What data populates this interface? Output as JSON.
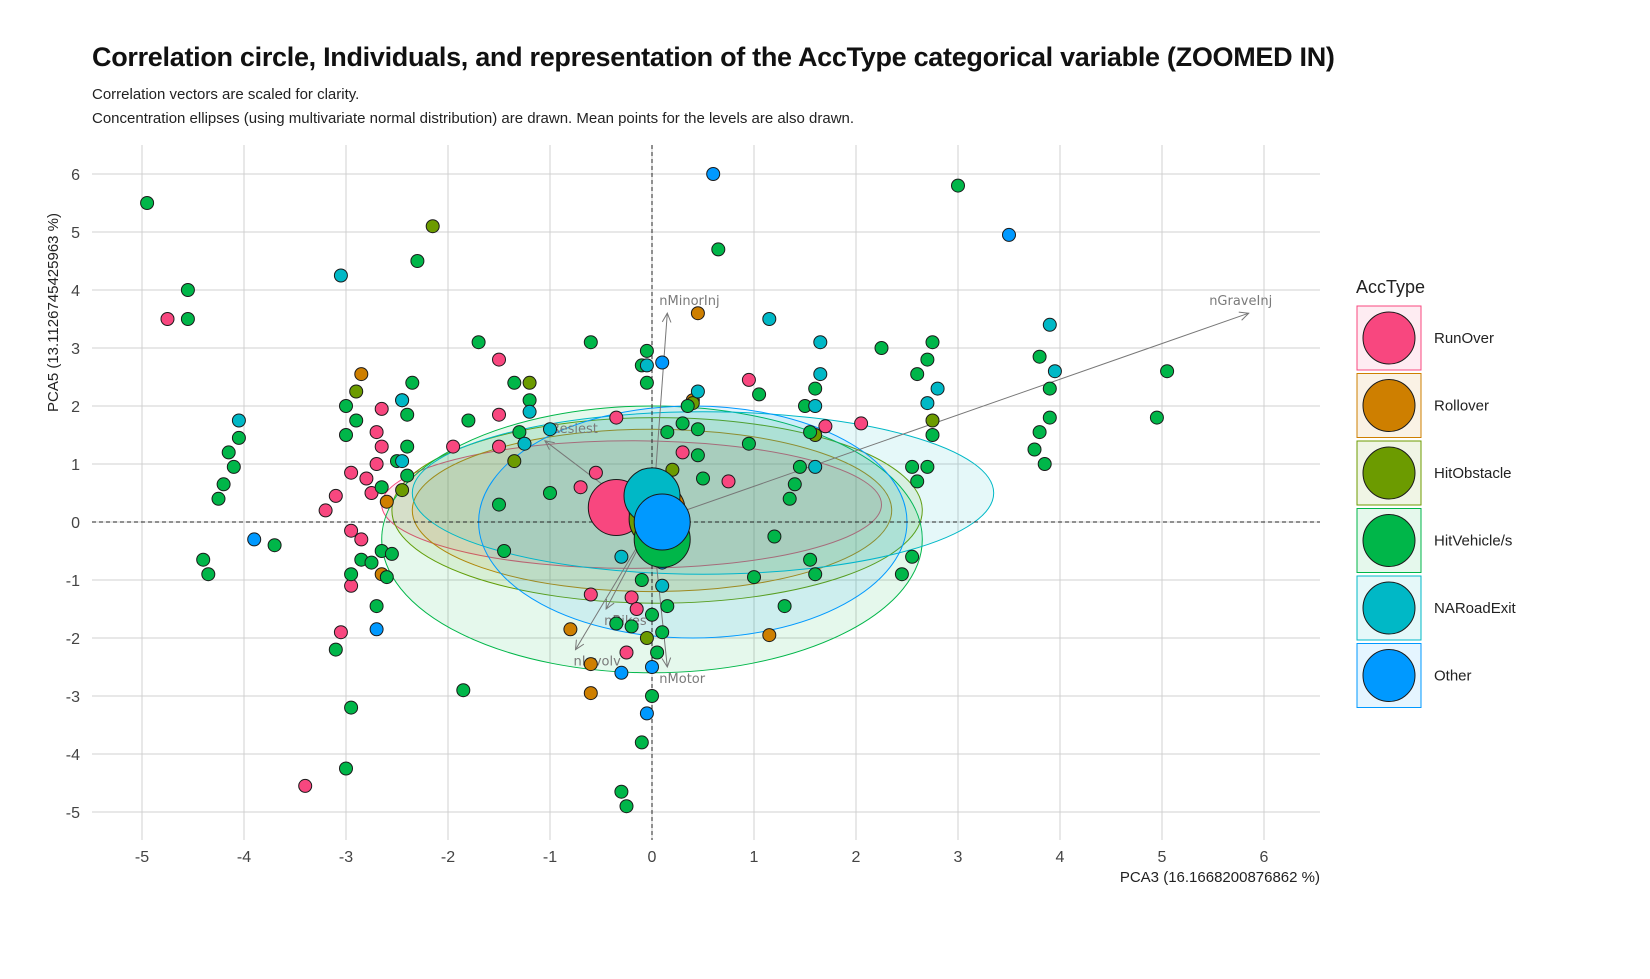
{
  "chart_data": {
    "type": "scatter",
    "title": "Correlation circle, Individuals, and representation of the AccType categorical variable (ZOOMED IN)",
    "subtitle_lines": [
      "Correlation vectors are scaled for clarity.",
      "Concentration ellipses (using multivariate normal distribution) are drawn. Mean points for the levels are also drawn."
    ],
    "xlabel": "PCA3 (16.1668200876862 %)",
    "ylabel": "PCA5 (13.1126745425963 %)",
    "xlim": [
      -5.5,
      6.6
    ],
    "ylim": [
      -5.5,
      6.6
    ],
    "x_ticks": [
      -5,
      -4,
      -3,
      -2,
      -1,
      0,
      1,
      2,
      3,
      4,
      5,
      6
    ],
    "y_ticks": [
      -5,
      -4,
      -3,
      -2,
      -1,
      0,
      1,
      2,
      3,
      4,
      5,
      6
    ],
    "grid": true,
    "legend": {
      "title": "AccType",
      "position": "right",
      "levels": [
        {
          "name": "RunOver",
          "color": "#F8477F"
        },
        {
          "name": "Rollover",
          "color": "#CE7F00"
        },
        {
          "name": "HitObstacle",
          "color": "#6C9B00"
        },
        {
          "name": "HitVehicle/s",
          "color": "#00B649"
        },
        {
          "name": "NARoadExit",
          "color": "#00B8C6"
        },
        {
          "name": "Other",
          "color": "#0099FF"
        }
      ]
    },
    "vectors": [
      {
        "name": "nMinorInj",
        "x": 0.15,
        "y": 3.6
      },
      {
        "name": "nGraveInj",
        "x": 5.85,
        "y": 3.6
      },
      {
        "name": "nResiest",
        "x": -1.05,
        "y": 1.4
      },
      {
        "name": "nBikes",
        "x": -0.45,
        "y": -1.5
      },
      {
        "name": "nInvolv",
        "x": -0.75,
        "y": -2.2
      },
      {
        "name": "nMotor",
        "x": 0.15,
        "y": -2.5
      }
    ],
    "ellipses": [
      {
        "group": "RunOver",
        "cx": -0.2,
        "cy": 0.3,
        "rx": 2.45,
        "ry": 1.1
      },
      {
        "group": "Rollover",
        "cx": 0.0,
        "cy": 0.2,
        "rx": 2.35,
        "ry": 1.4
      },
      {
        "group": "HitObstacle",
        "cx": 0.05,
        "cy": 0.2,
        "rx": 2.6,
        "ry": 1.6
      },
      {
        "group": "HitVehicle/s",
        "cx": 0.0,
        "cy": -0.3,
        "rx": 2.65,
        "ry": 2.3
      },
      {
        "group": "NARoadExit",
        "cx": 0.5,
        "cy": 0.5,
        "rx": 2.85,
        "ry": 1.4
      },
      {
        "group": "Other",
        "cx": 0.4,
        "cy": 0.0,
        "rx": 2.1,
        "ry": 2.0
      }
    ],
    "means": [
      {
        "group": "RunOver",
        "x": -0.35,
        "y": 0.25
      },
      {
        "group": "Rollover",
        "x": 0.05,
        "y": 0.2
      },
      {
        "group": "HitObstacle",
        "x": 0.05,
        "y": 0.05
      },
      {
        "group": "HitVehicle/s",
        "x": 0.1,
        "y": -0.3
      },
      {
        "group": "NARoadExit",
        "x": 0.0,
        "y": 0.45
      },
      {
        "group": "Other",
        "x": 0.1,
        "y": 0.0
      }
    ],
    "series": [
      {
        "name": "RunOver",
        "points": [
          [
            -4.75,
            3.5
          ],
          [
            -3.4,
            -4.55
          ],
          [
            -3.2,
            0.2
          ],
          [
            -3.1,
            0.45
          ],
          [
            -3.05,
            -1.9
          ],
          [
            -2.95,
            -0.15
          ],
          [
            -2.95,
            -1.1
          ],
          [
            -2.95,
            0.85
          ],
          [
            -2.85,
            -0.3
          ],
          [
            -2.8,
            0.75
          ],
          [
            -2.75,
            0.5
          ],
          [
            -2.7,
            1.0
          ],
          [
            -2.7,
            1.55
          ],
          [
            -2.65,
            1.3
          ],
          [
            -2.65,
            1.95
          ],
          [
            -1.95,
            1.3
          ],
          [
            -1.5,
            1.85
          ],
          [
            -1.5,
            1.3
          ],
          [
            -1.5,
            2.8
          ],
          [
            -0.6,
            -1.25
          ],
          [
            -0.35,
            1.8
          ],
          [
            -0.25,
            -2.25
          ],
          [
            -0.2,
            -1.3
          ],
          [
            -0.15,
            -1.5
          ],
          [
            0.95,
            2.45
          ],
          [
            2.05,
            1.7
          ],
          [
            1.7,
            1.65
          ],
          [
            0.3,
            1.2
          ],
          [
            -0.55,
            0.85
          ],
          [
            -0.7,
            0.6
          ],
          [
            0.75,
            0.7
          ]
        ]
      },
      {
        "name": "Rollover",
        "points": [
          [
            -2.85,
            2.55
          ],
          [
            -2.65,
            -0.9
          ],
          [
            -2.6,
            0.35
          ],
          [
            -0.8,
            -1.85
          ],
          [
            -0.6,
            -2.45
          ],
          [
            -0.6,
            -2.95
          ],
          [
            0.45,
            3.6
          ],
          [
            1.15,
            -1.95
          ],
          [
            0.4,
            2.1
          ]
        ]
      },
      {
        "name": "HitObstacle",
        "points": [
          [
            -2.15,
            5.1
          ],
          [
            -2.9,
            2.25
          ],
          [
            -2.45,
            0.55
          ],
          [
            -1.2,
            2.4
          ],
          [
            -1.35,
            1.05
          ],
          [
            0.4,
            2.05
          ],
          [
            1.6,
            1.5
          ],
          [
            2.75,
            1.75
          ],
          [
            0.2,
            0.9
          ],
          [
            -0.05,
            -2.0
          ]
        ]
      },
      {
        "name": "HitVehicle/s",
        "points": [
          [
            -4.95,
            5.5
          ],
          [
            -4.55,
            4.0
          ],
          [
            -4.55,
            3.5
          ],
          [
            -4.4,
            -0.65
          ],
          [
            -4.35,
            -0.9
          ],
          [
            -4.25,
            0.4
          ],
          [
            -4.2,
            0.65
          ],
          [
            -4.15,
            1.2
          ],
          [
            -4.1,
            0.95
          ],
          [
            -4.05,
            1.45
          ],
          [
            -3.7,
            -0.4
          ],
          [
            -3.1,
            -2.2
          ],
          [
            -3.0,
            1.5
          ],
          [
            -3.0,
            2.0
          ],
          [
            -3.0,
            -4.25
          ],
          [
            -2.95,
            -3.2
          ],
          [
            -2.95,
            -0.9
          ],
          [
            -2.9,
            1.75
          ],
          [
            -2.85,
            -0.65
          ],
          [
            -2.75,
            -0.7
          ],
          [
            -2.7,
            -1.45
          ],
          [
            -2.65,
            0.6
          ],
          [
            -2.65,
            -0.5
          ],
          [
            -2.6,
            -0.95
          ],
          [
            -2.55,
            -0.55
          ],
          [
            -2.5,
            1.05
          ],
          [
            -2.45,
            2.1
          ],
          [
            -2.4,
            1.85
          ],
          [
            -2.4,
            1.3
          ],
          [
            -2.4,
            0.8
          ],
          [
            -2.35,
            2.4
          ],
          [
            -2.3,
            4.5
          ],
          [
            -1.85,
            -2.9
          ],
          [
            -1.8,
            1.75
          ],
          [
            -1.7,
            3.1
          ],
          [
            -1.5,
            0.3
          ],
          [
            -1.45,
            -0.5
          ],
          [
            -1.35,
            2.4
          ],
          [
            -1.3,
            1.55
          ],
          [
            -1.2,
            2.1
          ],
          [
            -1.0,
            0.5
          ],
          [
            -0.6,
            3.1
          ],
          [
            -0.35,
            -1.75
          ],
          [
            -0.3,
            -4.65
          ],
          [
            -0.25,
            -4.9
          ],
          [
            -0.2,
            -1.8
          ],
          [
            -0.1,
            2.7
          ],
          [
            -0.05,
            2.95
          ],
          [
            -0.05,
            2.4
          ],
          [
            -0.1,
            -1.0
          ],
          [
            -0.1,
            -3.8
          ],
          [
            0.0,
            -1.6
          ],
          [
            0.0,
            -3.0
          ],
          [
            0.05,
            -2.25
          ],
          [
            0.1,
            -1.9
          ],
          [
            0.15,
            -1.45
          ],
          [
            0.15,
            1.55
          ],
          [
            0.2,
            0.55
          ],
          [
            0.3,
            1.7
          ],
          [
            0.35,
            2.0
          ],
          [
            0.45,
            1.6
          ],
          [
            0.45,
            1.15
          ],
          [
            0.5,
            0.75
          ],
          [
            0.65,
            4.7
          ],
          [
            0.95,
            1.35
          ],
          [
            1.0,
            -0.95
          ],
          [
            1.05,
            2.2
          ],
          [
            1.2,
            -0.25
          ],
          [
            1.3,
            -1.45
          ],
          [
            1.35,
            0.4
          ],
          [
            1.4,
            0.65
          ],
          [
            1.45,
            0.95
          ],
          [
            1.5,
            2.0
          ],
          [
            1.55,
            -0.65
          ],
          [
            1.55,
            1.55
          ],
          [
            1.6,
            2.3
          ],
          [
            1.6,
            -0.9
          ],
          [
            2.25,
            3.0
          ],
          [
            2.45,
            -0.9
          ],
          [
            2.55,
            -0.6
          ],
          [
            2.55,
            0.95
          ],
          [
            2.6,
            0.7
          ],
          [
            2.6,
            2.55
          ],
          [
            2.7,
            2.8
          ],
          [
            2.7,
            0.95
          ],
          [
            2.75,
            1.5
          ],
          [
            2.75,
            3.1
          ],
          [
            3.0,
            5.8
          ],
          [
            3.75,
            1.25
          ],
          [
            3.8,
            2.85
          ],
          [
            3.8,
            1.55
          ],
          [
            3.85,
            1.0
          ],
          [
            3.9,
            1.8
          ],
          [
            3.9,
            2.3
          ],
          [
            4.95,
            1.8
          ],
          [
            5.05,
            2.6
          ]
        ]
      },
      {
        "name": "NARoadExit",
        "points": [
          [
            -4.05,
            1.75
          ],
          [
            -3.05,
            4.25
          ],
          [
            -2.45,
            2.1
          ],
          [
            -2.45,
            1.05
          ],
          [
            -1.2,
            1.9
          ],
          [
            -1.25,
            1.35
          ],
          [
            -1.0,
            1.6
          ],
          [
            -0.05,
            2.7
          ],
          [
            0.45,
            2.25
          ],
          [
            1.15,
            3.5
          ],
          [
            1.65,
            3.1
          ],
          [
            1.65,
            2.55
          ],
          [
            1.6,
            2.0
          ],
          [
            1.6,
            0.95
          ],
          [
            2.7,
            2.05
          ],
          [
            2.8,
            2.3
          ],
          [
            3.95,
            2.6
          ],
          [
            3.9,
            3.4
          ],
          [
            0.1,
            -1.1
          ],
          [
            -0.3,
            -0.6
          ]
        ]
      },
      {
        "name": "Other",
        "points": [
          [
            -3.9,
            -0.3
          ],
          [
            -2.7,
            -1.85
          ],
          [
            0.6,
            6.0
          ],
          [
            3.5,
            4.95
          ],
          [
            0.1,
            2.75
          ],
          [
            -0.3,
            -2.6
          ],
          [
            0.0,
            -2.5
          ],
          [
            -0.05,
            -3.3
          ],
          [
            0.1,
            -0.7
          ]
        ]
      }
    ]
  }
}
